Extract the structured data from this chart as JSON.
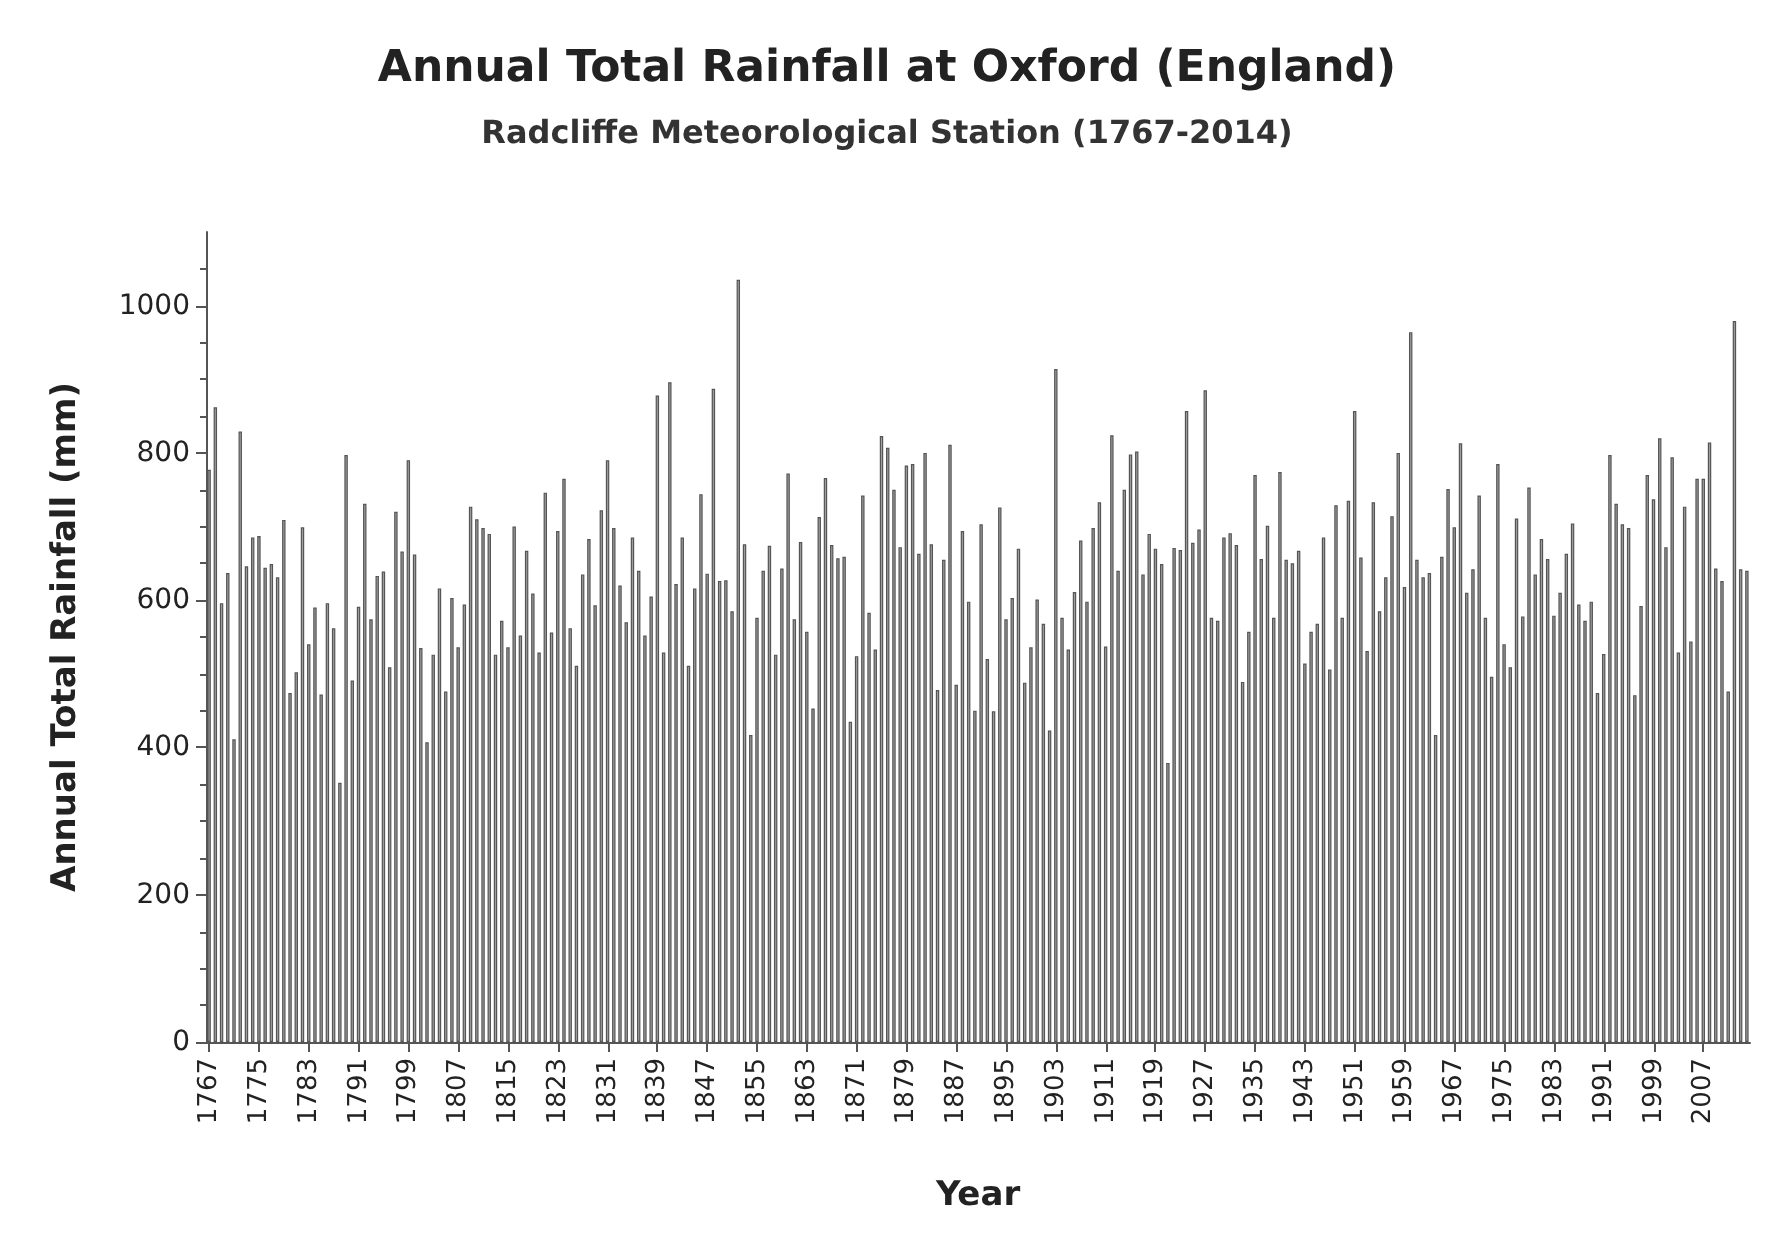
{
  "chart_data": {
    "type": "bar",
    "title": "Annual Total Rainfall at Oxford (England)",
    "subtitle": "Radcliffe Meteorological Station (1767-2014)",
    "xlabel": "Year",
    "ylabel": "Annual Total Rainfall (mm)",
    "categories": [
      "1767",
      null,
      null,
      null,
      null,
      null,
      null,
      null,
      "1775",
      null,
      null,
      null,
      null,
      null,
      null,
      null,
      "1783",
      null,
      null,
      null,
      null,
      null,
      null,
      null,
      "1791",
      null,
      null,
      null,
      null,
      null,
      null,
      null,
      "1799",
      null,
      null,
      null,
      null,
      null,
      null,
      null,
      "1807",
      null,
      null,
      null,
      null,
      null,
      null,
      null,
      "1815",
      null,
      null,
      null,
      null,
      null,
      null,
      null,
      "1823",
      null,
      null,
      null,
      null,
      null,
      null,
      null,
      "1831",
      null,
      null,
      null,
      null,
      null,
      null,
      null,
      "1839",
      null,
      null,
      null,
      null,
      null,
      null,
      null,
      "1847",
      null,
      null,
      null,
      null,
      null,
      null,
      null,
      "1855",
      null,
      null,
      null,
      null,
      null,
      null,
      null,
      "1863",
      null,
      null,
      null,
      null,
      null,
      null,
      null,
      "1871",
      null,
      null,
      null,
      null,
      null,
      null,
      null,
      "1879",
      null,
      null,
      null,
      null,
      null,
      null,
      null,
      "1887",
      null,
      null,
      null,
      null,
      null,
      null,
      null,
      "1895",
      null,
      null,
      null,
      null,
      null,
      null,
      null,
      "1903",
      null,
      null,
      null,
      null,
      null,
      null,
      null,
      "1911",
      null,
      null,
      null,
      null,
      null,
      null,
      null,
      "1919",
      null,
      null,
      null,
      null,
      null,
      null,
      null,
      "1927",
      null,
      null,
      null,
      null,
      null,
      null,
      null,
      "1935",
      null,
      null,
      null,
      null,
      null,
      null,
      null,
      "1943",
      null,
      null,
      null,
      null,
      null,
      null,
      null,
      "1951",
      null,
      null,
      null,
      null,
      null,
      null,
      null,
      "1959",
      null,
      null,
      null,
      null,
      null,
      null,
      null,
      "1967",
      null,
      null,
      null,
      null,
      null,
      null,
      null,
      "1975",
      null,
      null,
      null,
      null,
      null,
      null,
      null,
      "1983",
      null,
      null,
      null,
      null,
      null,
      null,
      null,
      "1991",
      null,
      null,
      null,
      null,
      null,
      null,
      null,
      "1999",
      null,
      null,
      null,
      null,
      null,
      null,
      null,
      "2007",
      null,
      null,
      null,
      null,
      null,
      null,
      null
    ],
    "values": [
      777,
      862,
      596,
      637,
      411,
      829,
      646,
      685,
      687,
      644,
      649,
      631,
      709,
      474,
      502,
      699,
      540,
      590,
      472,
      596,
      562,
      352,
      797,
      491,
      591,
      731,
      574,
      633,
      639,
      509,
      720,
      666,
      790,
      662,
      535,
      407,
      526,
      616,
      476,
      603,
      536,
      594,
      727,
      710,
      698,
      690,
      526,
      572,
      536,
      700,
      552,
      667,
      609,
      529,
      746,
      556,
      694,
      765,
      562,
      511,
      635,
      683,
      593,
      722,
      790,
      698,
      620,
      570,
      685,
      640,
      552,
      605,
      878,
      529,
      896,
      622,
      685,
      511,
      616,
      744,
      636,
      887,
      626,
      627,
      585,
      1035,
      676,
      417,
      576,
      640,
      674,
      526,
      643,
      772,
      574,
      679,
      557,
      453,
      713,
      766,
      675,
      657,
      659,
      435,
      524,
      742,
      583,
      533,
      823,
      807,
      750,
      672,
      783,
      785,
      663,
      800,
      676,
      478,
      655,
      811,
      485,
      694,
      598,
      450,
      703,
      520,
      449,
      726,
      574,
      603,
      670,
      488,
      536,
      601,
      568,
      423,
      914,
      576,
      533,
      611,
      681,
      598,
      698,
      733,
      537,
      824,
      640,
      750,
      798,
      802,
      635,
      690,
      670,
      649,
      379,
      671,
      668,
      857,
      678,
      696,
      885,
      576,
      572,
      685,
      691,
      675,
      489,
      557,
      770,
      656,
      701,
      576,
      774,
      655,
      650,
      667,
      514,
      557,
      568,
      685,
      506,
      729,
      576,
      735,
      857,
      658,
      531,
      733,
      585,
      631,
      714,
      800,
      618,
      964,
      655,
      631,
      637,
      417,
      659,
      751,
      699,
      813,
      610,
      642,
      742,
      576,
      496,
      785,
      540,
      509,
      711,
      578,
      753,
      635,
      683,
      656,
      579,
      610,
      663,
      704,
      594,
      572,
      598,
      474,
      527,
      797,
      731,
      703,
      698,
      471,
      592,
      770,
      737,
      820,
      672,
      794,
      529,
      727,
      544,
      765,
      765,
      814,
      643,
      626,
      476,
      979,
      642,
      640
    ],
    "color": "#a0a0a0",
    "ylim": [
      0,
      1100
    ],
    "yticks": [
      0,
      200,
      400,
      600,
      800,
      1000
    ],
    "grid": false
  }
}
